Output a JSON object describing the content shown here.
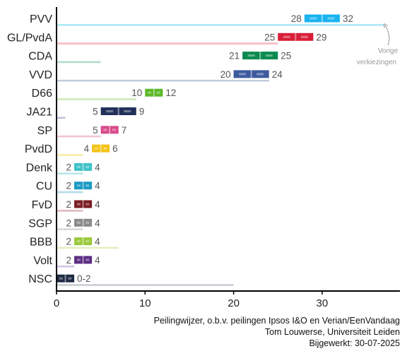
{
  "chart_data": {
    "type": "range-bar",
    "parties": [
      {
        "name": "PVV",
        "low": 28,
        "high": 32,
        "range_label_low": "28",
        "range_label_high": "32",
        "previous": 37,
        "color": "#1ab3f0",
        "prev_color": "#aee8f5"
      },
      {
        "name": "GL/PvdA",
        "low": 25,
        "high": 29,
        "range_label_low": "25",
        "range_label_high": "29",
        "previous": 25,
        "color": "#d81f38",
        "prev_color": "#f5b8c3"
      },
      {
        "name": "CDA",
        "low": 21,
        "high": 25,
        "range_label_low": "21",
        "range_label_high": "25",
        "previous": 5,
        "color": "#0a8a50",
        "prev_color": "#b2dfc8"
      },
      {
        "name": "VVD",
        "low": 20,
        "high": 24,
        "range_label_low": "20",
        "range_label_high": "24",
        "previous": 24,
        "color": "#3d5a9e",
        "prev_color": "#c3ccdc"
      },
      {
        "name": "D66",
        "low": 10,
        "high": 12,
        "range_label_low": "10",
        "range_label_high": "12",
        "previous": 9,
        "color": "#5cb829",
        "prev_color": "#cdebb8"
      },
      {
        "name": "JA21",
        "low": 5,
        "high": 9,
        "range_label_low": "5",
        "range_label_high": "9",
        "previous": 1,
        "color": "#22305a",
        "prev_color": "#c0bfd8"
      },
      {
        "name": "SP",
        "low": 5,
        "high": 7,
        "range_label_low": "5",
        "range_label_high": "7",
        "previous": 5,
        "color": "#d94a8a",
        "prev_color": "#f0c4d6"
      },
      {
        "name": "PvdD",
        "low": 4,
        "high": 6,
        "range_label_low": "4",
        "range_label_high": "6",
        "previous": 3,
        "color": "#f2c318",
        "prev_color": "#f5eca6"
      },
      {
        "name": "Denk",
        "low": 2,
        "high": 4,
        "range_label_low": "2",
        "range_label_high": "4",
        "previous": 3,
        "color": "#3fc2c8",
        "prev_color": "#b6e7ea"
      },
      {
        "name": "CU",
        "low": 2,
        "high": 4,
        "range_label_low": "2",
        "range_label_high": "4",
        "previous": 3,
        "color": "#1a9ac3",
        "prev_color": "#b4dcea"
      },
      {
        "name": "FvD",
        "low": 2,
        "high": 4,
        "range_label_low": "2",
        "range_label_high": "4",
        "previous": 3,
        "color": "#7b1d22",
        "prev_color": "#e0b9bc"
      },
      {
        "name": "SGP",
        "low": 2,
        "high": 4,
        "range_label_low": "2",
        "range_label_high": "4",
        "previous": 3,
        "color": "#8a8a8a",
        "prev_color": "#d9d9d9"
      },
      {
        "name": "BBB",
        "low": 2,
        "high": 4,
        "range_label_low": "2",
        "range_label_high": "4",
        "previous": 7,
        "color": "#9ac93a",
        "prev_color": "#e2f0c0"
      },
      {
        "name": "Volt",
        "low": 2,
        "high": 4,
        "range_label_low": "2",
        "range_label_high": "4",
        "previous": 2,
        "color": "#5a2d82",
        "prev_color": "#d2c6e0"
      },
      {
        "name": "NSC",
        "low": 0,
        "high": 2,
        "range_label_low": "",
        "range_label_high": "0-2",
        "previous": 20,
        "color": "#1f2a44",
        "prev_color": "#c9ccd3"
      }
    ],
    "x_ticks": [
      "0",
      "10",
      "20",
      "30"
    ],
    "xlim": [
      0,
      39
    ],
    "annotation": {
      "line1": "Vorige",
      "line2": "verkiezingen",
      "points_to": "PVV"
    },
    "source_lines": [
      "Peilingwijzer, o.b.v. peilingen Ipsos I&O en Verian/EenVandaag",
      "Tom Louwerse, Universiteit Leiden",
      "Bijgewerkt: 30-07-2025"
    ]
  }
}
